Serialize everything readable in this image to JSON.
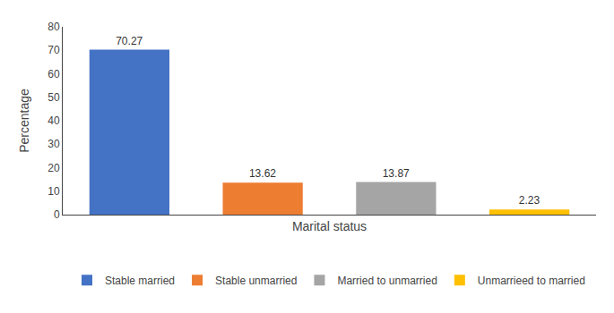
{
  "chart_data": {
    "type": "bar",
    "categories": [
      "Stable married",
      "Stable unmarried",
      "Married to unmarried",
      "Unmarrieed to married"
    ],
    "values": [
      70.27,
      13.62,
      13.87,
      2.23
    ],
    "colors": [
      "#4472C4",
      "#ED7D31",
      "#A5A5A5",
      "#FFC000"
    ],
    "xlabel": "Marital status",
    "ylabel": "Percentage",
    "ylim": [
      0,
      80
    ],
    "yticks": [
      0,
      10,
      20,
      30,
      40,
      50,
      60,
      70,
      80
    ],
    "grid": false,
    "data_labels": true,
    "legend": "bottom",
    "tick_labels": "y"
  }
}
